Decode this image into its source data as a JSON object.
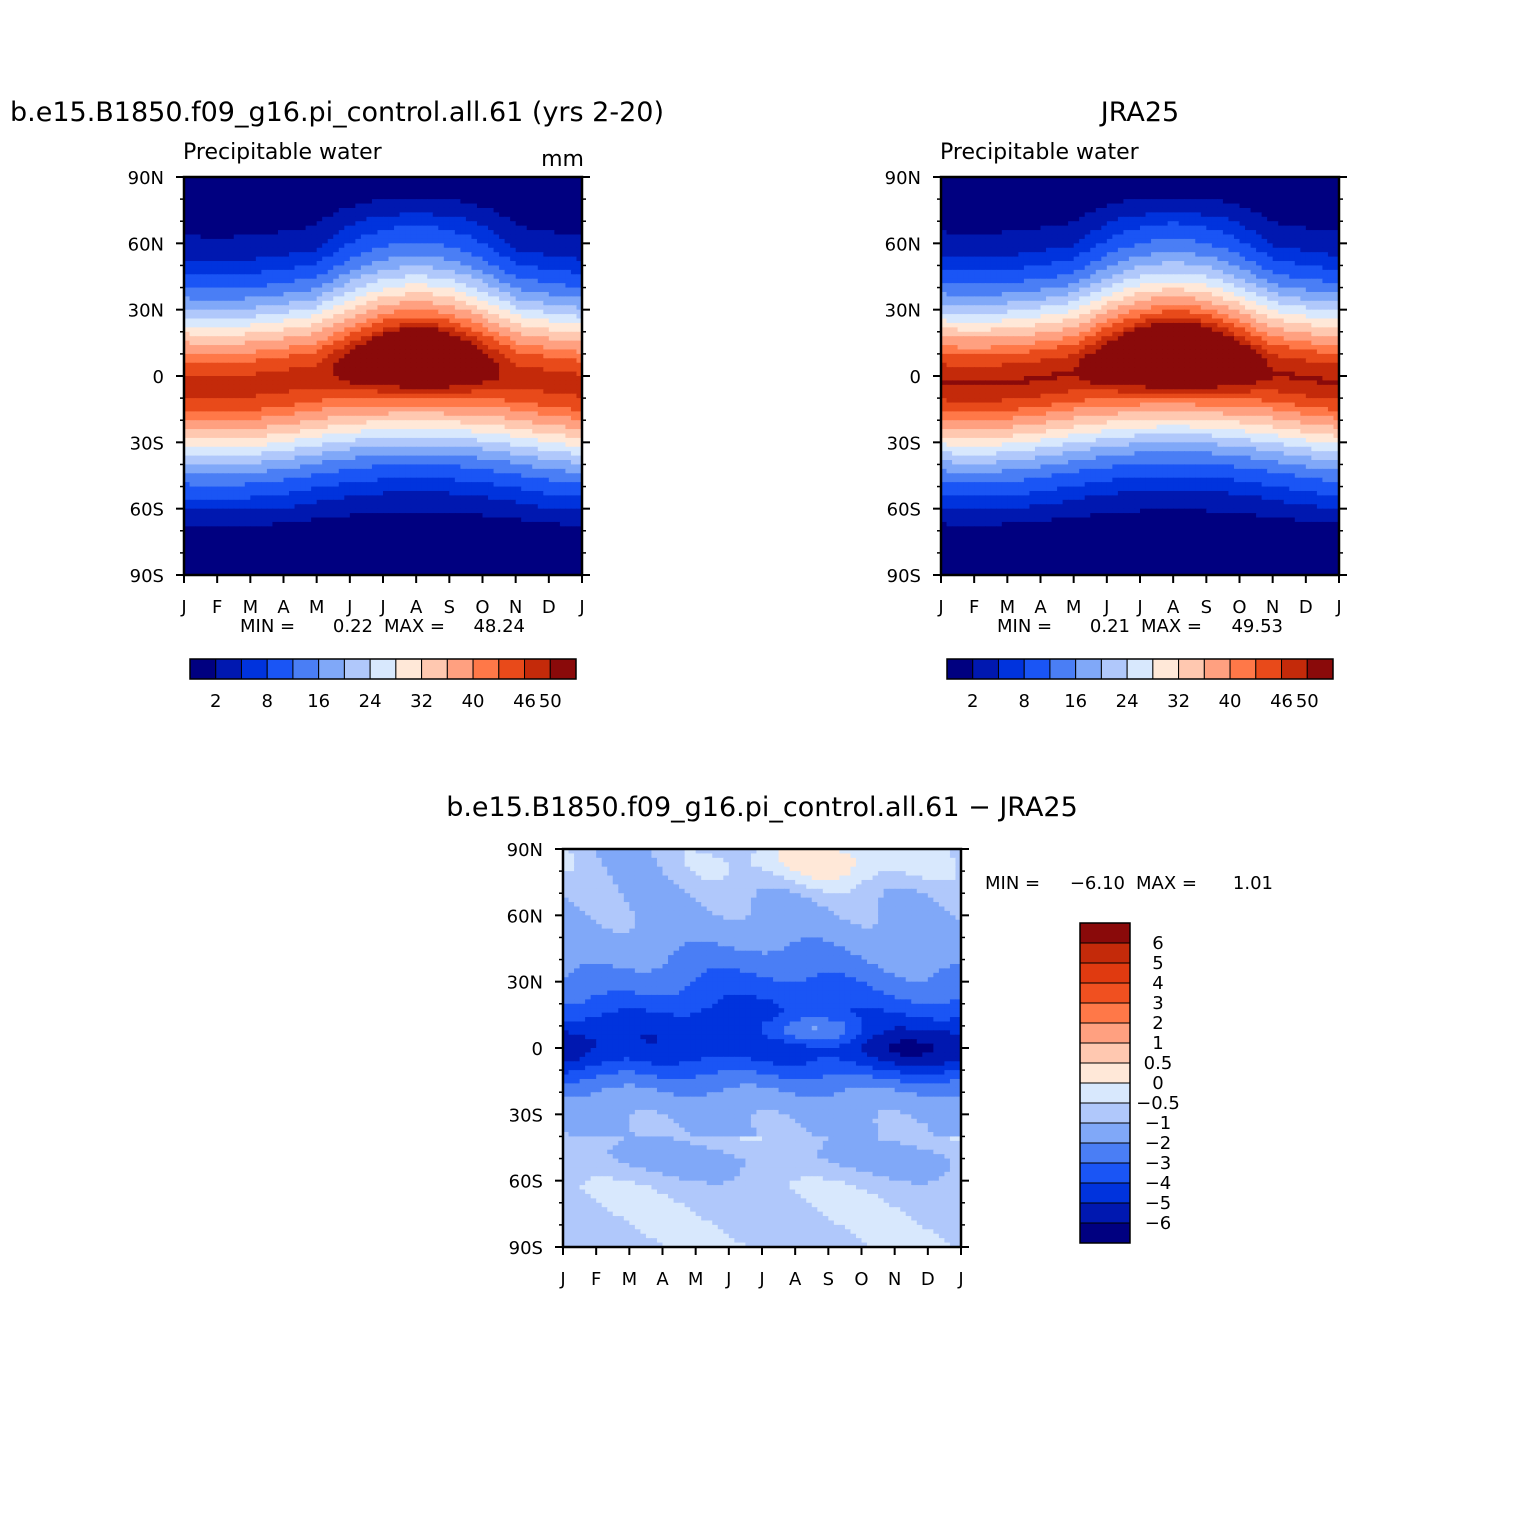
{
  "chart_data": [
    {
      "type": "heatmap",
      "title": "b.e15.B1850.f09_g16.pi_control.all.61 (yrs 2-20)",
      "subtitle_left": "Precipitable water",
      "units": "mm",
      "x": [
        "J",
        "F",
        "M",
        "A",
        "M",
        "J",
        "J",
        "A",
        "S",
        "O",
        "N",
        "D",
        "J"
      ],
      "y": [
        "90N",
        "60N",
        "30N",
        "0",
        "30S",
        "60S",
        "90S"
      ],
      "ylim": [
        -90,
        90
      ],
      "stats": {
        "min_label": "MIN =",
        "min": "0.22",
        "max_label": "MAX =",
        "max": "48.24"
      },
      "colorbar": {
        "orientation": "horizontal",
        "colors": [
          "#000080",
          "#0018B0",
          "#0033DD",
          "#1A55F5",
          "#4A7EF5",
          "#80A8F8",
          "#B0C8FB",
          "#D8E8FD",
          "#FFE8D8",
          "#FFC8B0",
          "#FFA080",
          "#FF7848",
          "#E84A1A",
          "#C42A0A",
          "#8A0A0A"
        ],
        "tick_labels": [
          "2",
          "8",
          "16",
          "24",
          "32",
          "40",
          "46",
          "50"
        ]
      },
      "field": {
        "kind": "model",
        "peak": 48.24,
        "floor": 0.22
      }
    },
    {
      "type": "heatmap",
      "title": "JRA25",
      "subtitle_left": "Precipitable water",
      "x": [
        "J",
        "F",
        "M",
        "A",
        "M",
        "J",
        "J",
        "A",
        "S",
        "O",
        "N",
        "D",
        "J"
      ],
      "y": [
        "90N",
        "60N",
        "30N",
        "0",
        "30S",
        "60S",
        "90S"
      ],
      "ylim": [
        -90,
        90
      ],
      "stats": {
        "min_label": "MIN =",
        "min": "0.21",
        "max_label": "MAX =",
        "max": "49.53"
      },
      "colorbar": {
        "orientation": "horizontal",
        "colors": [
          "#000080",
          "#0018B0",
          "#0033DD",
          "#1A55F5",
          "#4A7EF5",
          "#80A8F8",
          "#B0C8FB",
          "#D8E8FD",
          "#FFE8D8",
          "#FFC8B0",
          "#FFA080",
          "#FF7848",
          "#E84A1A",
          "#C42A0A",
          "#8A0A0A"
        ],
        "tick_labels": [
          "2",
          "8",
          "16",
          "24",
          "32",
          "40",
          "46",
          "50"
        ]
      },
      "field": {
        "kind": "obs",
        "peak": 49.53,
        "floor": 0.21
      }
    },
    {
      "type": "heatmap",
      "title": "b.e15.B1850.f09_g16.pi_control.all.61 − JRA25",
      "x": [
        "J",
        "F",
        "M",
        "A",
        "M",
        "J",
        "J",
        "A",
        "S",
        "O",
        "N",
        "D",
        "J"
      ],
      "y": [
        "90N",
        "60N",
        "30N",
        "0",
        "30S",
        "60S",
        "90S"
      ],
      "ylim": [
        -90,
        90
      ],
      "stats": {
        "min_label": "MIN =",
        "min": "−6.10",
        "max_label": "MAX =",
        "max": "1.01"
      },
      "colorbar": {
        "orientation": "vertical",
        "colors": [
          "#8A0A0A",
          "#C42A0A",
          "#E03A10",
          "#F05020",
          "#FF7848",
          "#FFA080",
          "#FFC8B0",
          "#FFE8D8",
          "#D8E8FD",
          "#B0C8FB",
          "#80A8F8",
          "#4A7EF5",
          "#1A55F5",
          "#0033DD",
          "#0018B0",
          "#000080"
        ],
        "tick_labels": [
          "6",
          "5",
          "4",
          "3",
          "2",
          "1",
          "0.5",
          "0",
          "−0.5",
          "−1",
          "−2",
          "−3",
          "−4",
          "−5",
          "−6"
        ]
      },
      "field": {
        "kind": "diff",
        "min": -6.1,
        "max": 1.01
      }
    }
  ]
}
